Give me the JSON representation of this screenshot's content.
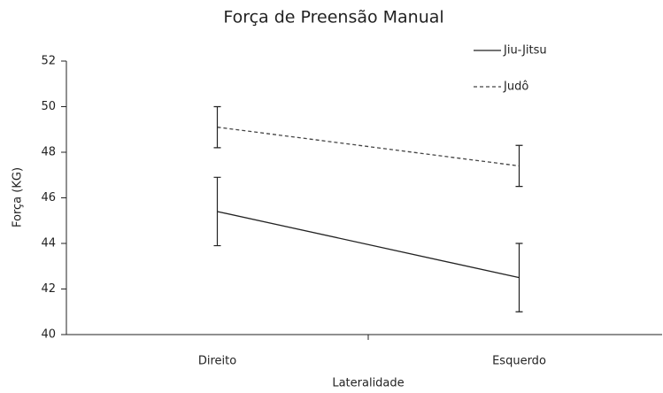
{
  "chart_data": {
    "type": "line",
    "title": "Força de Preensão Manual",
    "x_label": "Lateralidade",
    "y_label": "Força (KG)",
    "categories": [
      "Direito",
      "Esquerdo"
    ],
    "series": [
      {
        "name": "Jiu-Jitsu",
        "color": "#222222",
        "line_style": "solid",
        "values": [
          45.4,
          42.5
        ],
        "errors": [
          1.5,
          1.5
        ]
      },
      {
        "name": "Judô",
        "color": "#444444",
        "line_style": "dashed",
        "values": [
          49.1,
          47.4
        ],
        "errors": [
          0.9,
          0.9
        ]
      }
    ],
    "ylim": [
      40,
      52
    ],
    "yticks": [
      40,
      42,
      44,
      46,
      48,
      50,
      52
    ],
    "grid": false,
    "legend": "top-right"
  }
}
